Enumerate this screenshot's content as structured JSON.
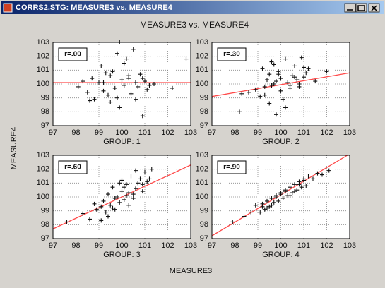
{
  "window": {
    "title": "CORRS2.STG: MEASURE3 vs. MEASURE4"
  },
  "figure": {
    "title": "MEASURE3 vs. MEASURE4",
    "xlabel": "MEASURE3",
    "ylabel": "MEASURE4"
  },
  "chart_data": [
    {
      "type": "scatter",
      "xlabel": "GROUP: 1",
      "annotation": "r=.00",
      "color": "#111111",
      "grid": true,
      "xlim": [
        97,
        103
      ],
      "ylim": [
        97,
        103
      ],
      "xticks": [
        97,
        98,
        99,
        100,
        101,
        102,
        103
      ],
      "yticks": [
        97,
        98,
        99,
        100,
        101,
        102,
        103
      ],
      "x": [
        98.1,
        98.3,
        98.5,
        98.7,
        98.8,
        99,
        99.1,
        99.2,
        99.3,
        99.4,
        99.5,
        99.6,
        99.7,
        99.8,
        99.9,
        100,
        100.1,
        100.2,
        100.3,
        100.4,
        100.5,
        100.6,
        100.7,
        100.8,
        100.9,
        101,
        101.1,
        101.2,
        101.4,
        102.2,
        102.8,
        99.2,
        99.8,
        100.3,
        100.6,
        98.6,
        99.5,
        100.9,
        99.9,
        100.1
      ],
      "values": [
        99.8,
        100.2,
        99.4,
        100.4,
        98.9,
        100.1,
        101.3,
        99.5,
        100.8,
        99.2,
        98.7,
        100.9,
        99.7,
        102.2,
        98.3,
        100.3,
        99.9,
        101.8,
        100.6,
        99.3,
        102.5,
        100.1,
        99.8,
        100.7,
        97.7,
        100.2,
        99.6,
        99.9,
        100,
        99.7,
        101.8,
        100.1,
        99,
        100.4,
        98.9,
        98.8,
        100.6,
        100.4,
        103,
        101.5
      ],
      "fit_line": {
        "color": "#ff4a4a",
        "x": [
          97,
          103
        ],
        "y": [
          100.1,
          100.1
        ]
      }
    },
    {
      "type": "scatter",
      "xlabel": "GROUP: 2",
      "annotation": "r=.30",
      "color": "#111111",
      "grid": true,
      "xlim": [
        97,
        103
      ],
      "ylim": [
        97,
        103
      ],
      "xticks": [
        97,
        98,
        99,
        100,
        101,
        102,
        103
      ],
      "yticks": [
        97,
        98,
        99,
        100,
        101,
        102,
        103
      ],
      "x": [
        98.2,
        98.6,
        98.9,
        99.1,
        99.2,
        99.3,
        99.4,
        99.5,
        99.5,
        99.6,
        99.7,
        99.8,
        99.8,
        99.9,
        100,
        100,
        100.1,
        100.2,
        100.3,
        100.4,
        100.5,
        100.6,
        100.7,
        100.8,
        100.9,
        101,
        101.1,
        101.2,
        101.5,
        102,
        99.3,
        99.7,
        100.2,
        100.6,
        101,
        99.9,
        100.4,
        98.3,
        99.6,
        100.8
      ],
      "values": [
        98,
        99.4,
        99.6,
        99.1,
        101.1,
        99.8,
        100.3,
        98.6,
        100.7,
        99.9,
        101.4,
        97.8,
        100.2,
        100.9,
        99.5,
        100.4,
        98.9,
        101.8,
        100.1,
        99.7,
        100.6,
        101.3,
        100.3,
        99.8,
        101.9,
        100.5,
        100.8,
        101.1,
        100.2,
        100.9,
        99.2,
        100,
        98.3,
        100.5,
        101.2,
        100.7,
        99.9,
        99.3,
        101.6,
        100
      ],
      "fit_line": {
        "color": "#ff4a4a",
        "x": [
          97,
          103
        ],
        "y": [
          99.1,
          100.8
        ]
      }
    },
    {
      "type": "scatter",
      "xlabel": "GROUP: 3",
      "annotation": "r=.60",
      "color": "#111111",
      "grid": true,
      "xlim": [
        97,
        103
      ],
      "ylim": [
        97,
        103
      ],
      "xticks": [
        97,
        98,
        99,
        100,
        101,
        102,
        103
      ],
      "yticks": [
        97,
        98,
        99,
        100,
        101,
        102,
        103
      ],
      "x": [
        97.6,
        98.3,
        98.6,
        98.9,
        99.1,
        99.2,
        99.3,
        99.4,
        99.5,
        99.6,
        99.7,
        99.8,
        99.9,
        100,
        100,
        100.1,
        100.2,
        100.3,
        100.4,
        100.5,
        100.6,
        100.7,
        100.8,
        100.9,
        101,
        101.1,
        101.3,
        99.4,
        99.9,
        100.3,
        100.6,
        99.1,
        100.2,
        99.7,
        100.9,
        101.2,
        98.8,
        100.1,
        100.5,
        99.6
      ],
      "values": [
        98.2,
        98.8,
        98.4,
        99.1,
        98.3,
        99.7,
        98.9,
        100.2,
        99.4,
        100.7,
        99.1,
        100,
        99.6,
        100.4,
        101.2,
        99.8,
        100.9,
        100.3,
        101.5,
        99.9,
        100.6,
        101,
        101.3,
        100.4,
        101.8,
        101.1,
        102,
        98.6,
        101,
        99.4,
        101.9,
        99.3,
        100.1,
        99.9,
        100.9,
        101.3,
        99.5,
        100.7,
        100.2,
        99.2
      ],
      "fit_line": {
        "color": "#ff4a4a",
        "x": [
          97,
          103
        ],
        "y": [
          97.7,
          102.3
        ]
      }
    },
    {
      "type": "scatter",
      "xlabel": "GROUP: 4",
      "annotation": "r=.90",
      "color": "#111111",
      "grid": true,
      "xlim": [
        97,
        103
      ],
      "ylim": [
        97,
        103
      ],
      "xticks": [
        97,
        98,
        99,
        100,
        101,
        102,
        103
      ],
      "yticks": [
        97,
        98,
        99,
        100,
        101,
        102,
        103
      ],
      "x": [
        97.9,
        98.4,
        98.7,
        98.9,
        99.1,
        99.2,
        99.3,
        99.4,
        99.5,
        99.6,
        99.7,
        99.8,
        99.9,
        100,
        100.1,
        100.2,
        100.3,
        100.4,
        100.5,
        100.6,
        100.7,
        100.8,
        100.9,
        101,
        101.1,
        101.2,
        101.4,
        101.6,
        101.8,
        102.1,
        99.4,
        99.8,
        100.2,
        100.6,
        101,
        99.6,
        100.4,
        100.8,
        99.2,
        100
      ],
      "values": [
        98.2,
        98.6,
        98.9,
        99.4,
        98.9,
        99.5,
        99.1,
        99.7,
        99.3,
        99.9,
        99.6,
        100.1,
        99.7,
        100.2,
        99.9,
        100.5,
        100.1,
        100.7,
        100.3,
        100.9,
        100.5,
        101.1,
        100.7,
        101.2,
        100.8,
        101.5,
        101.3,
        101.7,
        101.6,
        101.9,
        99.2,
        100,
        100.4,
        100.4,
        101.3,
        99.4,
        100.1,
        100.9,
        99.3,
        100.3
      ],
      "fit_line": {
        "color": "#ff4a4a",
        "x": [
          97,
          102.9
        ],
        "y": [
          97.2,
          103
        ]
      }
    }
  ]
}
